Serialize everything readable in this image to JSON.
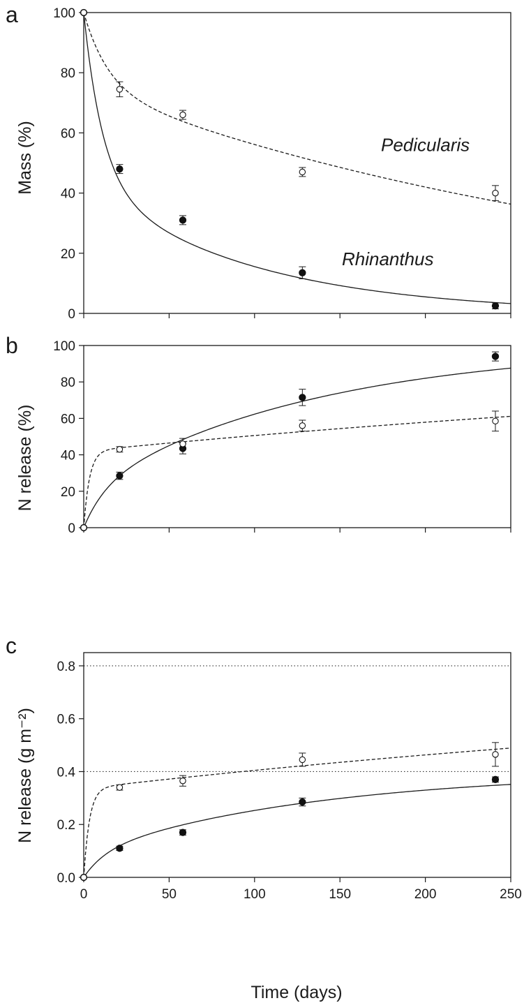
{
  "chart_data": [
    {
      "type": "scatter",
      "panel": "a",
      "xlabel": "",
      "ylabel": "Mass (%)",
      "xlim": [
        0,
        250
      ],
      "ylim": [
        0,
        100
      ],
      "xticks": [
        0,
        50,
        100,
        150,
        200,
        250
      ],
      "yticks": [
        0,
        20,
        40,
        60,
        80,
        100
      ],
      "show_x_tick_labels": false,
      "grid": false,
      "series": [
        {
          "name": "Rhinanthus",
          "marker": "filled-circle",
          "line": "solid",
          "x": [
            0,
            21,
            58,
            128,
            241
          ],
          "y": [
            100,
            48,
            31,
            13.5,
            2.5
          ],
          "error": [
            0,
            1.5,
            1.5,
            2,
            1
          ],
          "fit": {
            "model": "two-pool-decay",
            "fraction_fast": 0.56,
            "k_fast": 0.09,
            "k_slow": 0.0104
          }
        },
        {
          "name": "Pedicularis",
          "marker": "open-circle",
          "line": "dashed",
          "x": [
            0,
            21,
            58,
            128,
            241
          ],
          "y": [
            100,
            74.5,
            66,
            47,
            40
          ],
          "error": [
            0,
            2.5,
            1.5,
            1.5,
            2.5
          ],
          "fit": {
            "model": "two-pool-decay",
            "fraction_fast": 0.25,
            "k_fast": 0.07,
            "k_slow": 0.0029
          }
        }
      ],
      "annotations": [
        {
          "series": "Pedicularis",
          "text": "Pedicularis",
          "x": 200,
          "y": 54
        },
        {
          "series": "Rhinanthus",
          "text": "Rhinanthus",
          "x": 178,
          "y": 16
        }
      ]
    },
    {
      "type": "scatter",
      "panel": "b",
      "xlabel": "",
      "ylabel": "N release (%)",
      "xlim": [
        0,
        250
      ],
      "ylim": [
        0,
        100
      ],
      "xticks": [
        0,
        50,
        100,
        150,
        200,
        250
      ],
      "yticks": [
        0,
        20,
        40,
        60,
        80,
        100
      ],
      "show_x_tick_labels": false,
      "grid": false,
      "series": [
        {
          "name": "Rhinanthus",
          "marker": "filled-circle",
          "line": "solid",
          "x": [
            0,
            21,
            58,
            128,
            241
          ],
          "y": [
            0,
            28.5,
            43.5,
            71.5,
            94
          ],
          "error": [
            0,
            2,
            3,
            4.5,
            2.5
          ],
          "fit": {
            "model": "two-pool-release",
            "fraction_fast": 0.21,
            "k_fast": 0.08,
            "k_slow": 0.0074
          }
        },
        {
          "name": "Pedicularis",
          "marker": "open-circle",
          "line": "dashed",
          "x": [
            0,
            21,
            58,
            128,
            241
          ],
          "y": [
            0,
            43,
            46,
            56,
            58.5
          ],
          "error": [
            0,
            1.5,
            3,
            3,
            5.5
          ],
          "fit": {
            "model": "two-pool-release",
            "fraction_fast": 0.42,
            "k_fast": 0.3,
            "k_slow": 0.0016
          }
        }
      ]
    },
    {
      "type": "scatter",
      "panel": "c",
      "xlabel": "Time (days)",
      "ylabel": "N release  (g m⁻²)",
      "xlim": [
        0,
        250
      ],
      "ylim": [
        0,
        0.85
      ],
      "xticks": [
        0,
        50,
        100,
        150,
        200,
        250
      ],
      "yticks": [
        0,
        0.2,
        0.4,
        0.6,
        0.8
      ],
      "ytick_labels": [
        "0.0",
        "0.2",
        "0.4",
        "0.6",
        "0.8"
      ],
      "show_x_tick_labels": true,
      "grid": false,
      "reference_lines": [
        {
          "y": 0.4,
          "style": "dotted"
        },
        {
          "y": 0.8,
          "style": "dotted"
        }
      ],
      "series": [
        {
          "name": "Rhinanthus",
          "marker": "filled-circle",
          "line": "solid",
          "x": [
            0,
            21,
            58,
            128,
            241
          ],
          "y": [
            0,
            0.11,
            0.17,
            0.285,
            0.37
          ],
          "error": [
            0,
            0.008,
            0.01,
            0.015,
            0.01
          ],
          "fit": {
            "model": "two-pool-release",
            "total": 0.4,
            "fraction_fast": 0.23,
            "k_fast": 0.08,
            "k_slow": 0.0074
          }
        },
        {
          "name": "Pedicularis",
          "marker": "open-circle",
          "line": "dashed",
          "x": [
            0,
            21,
            58,
            128,
            241
          ],
          "y": [
            0,
            0.34,
            0.365,
            0.445,
            0.465
          ],
          "error": [
            0,
            0.01,
            0.02,
            0.025,
            0.045
          ],
          "fit": {
            "model": "two-pool-release",
            "total": 0.8,
            "fraction_fast": 0.42,
            "k_fast": 0.3,
            "k_slow": 0.0016
          }
        }
      ]
    }
  ]
}
